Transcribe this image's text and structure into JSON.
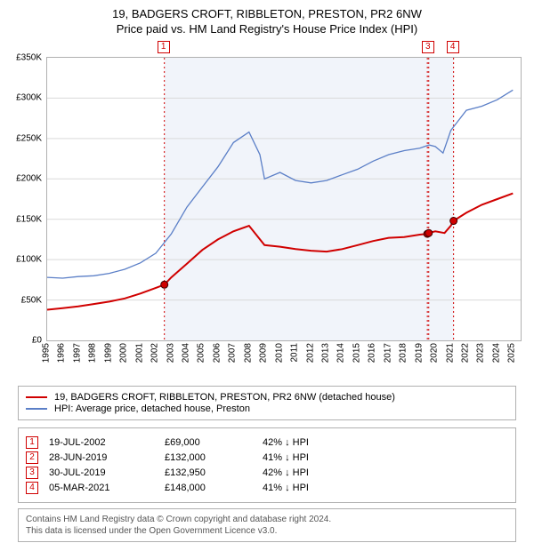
{
  "title_line1": "19, BADGERS CROFT, RIBBLETON, PRESTON, PR2 6NW",
  "title_line2": "Price paid vs. HM Land Registry's House Price Index (HPI)",
  "chart": {
    "type": "line",
    "background": "#ffffff",
    "grid_color": "#d9d9d9",
    "border_color": "#b0b0b0",
    "shade_color": "#f1f4fa",
    "shade_x_from": 2002.55,
    "shade_x_to": 2021.18,
    "xlim": [
      1995,
      2025.5
    ],
    "ylim": [
      0,
      350000
    ],
    "y_ticks": [
      0,
      50000,
      100000,
      150000,
      200000,
      250000,
      300000,
      350000
    ],
    "y_tick_labels": [
      "£0",
      "£50K",
      "£100K",
      "£150K",
      "£200K",
      "£250K",
      "£300K",
      "£350K"
    ],
    "x_ticks": [
      1995,
      1996,
      1997,
      1998,
      1999,
      2000,
      2001,
      2002,
      2003,
      2004,
      2005,
      2006,
      2007,
      2008,
      2009,
      2010,
      2011,
      2012,
      2013,
      2014,
      2015,
      2016,
      2017,
      2018,
      2019,
      2020,
      2021,
      2022,
      2023,
      2024,
      2025
    ],
    "series": [
      {
        "name": "price_paid",
        "color": "#d00000",
        "width": 2,
        "points": [
          [
            1995,
            38000
          ],
          [
            1996,
            40000
          ],
          [
            1997,
            42000
          ],
          [
            1998,
            45000
          ],
          [
            1999,
            48000
          ],
          [
            2000,
            52000
          ],
          [
            2001,
            58000
          ],
          [
            2002,
            65000
          ],
          [
            2002.55,
            69000
          ],
          [
            2003,
            78000
          ],
          [
            2004,
            95000
          ],
          [
            2005,
            112000
          ],
          [
            2006,
            125000
          ],
          [
            2007,
            135000
          ],
          [
            2008,
            142000
          ],
          [
            2008.5,
            130000
          ],
          [
            2009,
            118000
          ],
          [
            2010,
            116000
          ],
          [
            2011,
            113000
          ],
          [
            2012,
            111000
          ],
          [
            2013,
            110000
          ],
          [
            2014,
            113000
          ],
          [
            2015,
            118000
          ],
          [
            2016,
            123000
          ],
          [
            2017,
            127000
          ],
          [
            2018,
            128000
          ],
          [
            2019,
            131000
          ],
          [
            2019.49,
            132000
          ],
          [
            2019.58,
            132950
          ],
          [
            2020,
            135000
          ],
          [
            2020.6,
            133000
          ],
          [
            2021,
            142000
          ],
          [
            2021.18,
            148000
          ],
          [
            2022,
            158000
          ],
          [
            2023,
            168000
          ],
          [
            2024,
            175000
          ],
          [
            2025,
            182000
          ]
        ]
      },
      {
        "name": "hpi",
        "color": "#5b7fc7",
        "width": 1.3,
        "points": [
          [
            1995,
            78000
          ],
          [
            1996,
            77000
          ],
          [
            1997,
            79000
          ],
          [
            1998,
            80000
          ],
          [
            1999,
            83000
          ],
          [
            2000,
            88000
          ],
          [
            2001,
            96000
          ],
          [
            2002,
            108000
          ],
          [
            2003,
            132000
          ],
          [
            2004,
            165000
          ],
          [
            2005,
            190000
          ],
          [
            2006,
            215000
          ],
          [
            2007,
            245000
          ],
          [
            2008,
            258000
          ],
          [
            2008.7,
            230000
          ],
          [
            2009,
            200000
          ],
          [
            2010,
            208000
          ],
          [
            2011,
            198000
          ],
          [
            2012,
            195000
          ],
          [
            2013,
            198000
          ],
          [
            2014,
            205000
          ],
          [
            2015,
            212000
          ],
          [
            2016,
            222000
          ],
          [
            2017,
            230000
          ],
          [
            2018,
            235000
          ],
          [
            2019,
            238000
          ],
          [
            2019.6,
            242000
          ],
          [
            2020,
            240000
          ],
          [
            2020.5,
            232000
          ],
          [
            2021,
            260000
          ],
          [
            2022,
            285000
          ],
          [
            2023,
            290000
          ],
          [
            2024,
            298000
          ],
          [
            2025,
            310000
          ]
        ]
      }
    ],
    "sale_markers": [
      {
        "n": "1",
        "x": 2002.55,
        "y": 69000
      },
      {
        "n": "2",
        "x": 2019.49,
        "y": 132000
      },
      {
        "n": "3",
        "x": 2019.58,
        "y": 132950
      },
      {
        "n": "4",
        "x": 2021.18,
        "y": 148000
      }
    ],
    "marker_dot_fill": "#d00000",
    "marker_dot_stroke": "#400000",
    "top_marker_labels": [
      {
        "n": "1",
        "x": 2002.55
      },
      {
        "n": "3",
        "x": 2019.58
      },
      {
        "n": "4",
        "x": 2021.18
      }
    ]
  },
  "legend": {
    "items": [
      {
        "color": "#d00000",
        "label": "19, BADGERS CROFT, RIBBLETON, PRESTON, PR2 6NW (detached house)"
      },
      {
        "color": "#5b7fc7",
        "label": "HPI: Average price, detached house, Preston"
      }
    ]
  },
  "table": {
    "rows": [
      {
        "n": "1",
        "date": "19-JUL-2002",
        "price": "£69,000",
        "diff": "42% ↓ HPI"
      },
      {
        "n": "2",
        "date": "28-JUN-2019",
        "price": "£132,000",
        "diff": "41% ↓ HPI"
      },
      {
        "n": "3",
        "date": "30-JUL-2019",
        "price": "£132,950",
        "diff": "42% ↓ HPI"
      },
      {
        "n": "4",
        "date": "05-MAR-2021",
        "price": "£148,000",
        "diff": "41% ↓ HPI"
      }
    ]
  },
  "footer": {
    "line1": "Contains HM Land Registry data © Crown copyright and database right 2024.",
    "line2": "This data is licensed under the Open Government Licence v3.0."
  }
}
